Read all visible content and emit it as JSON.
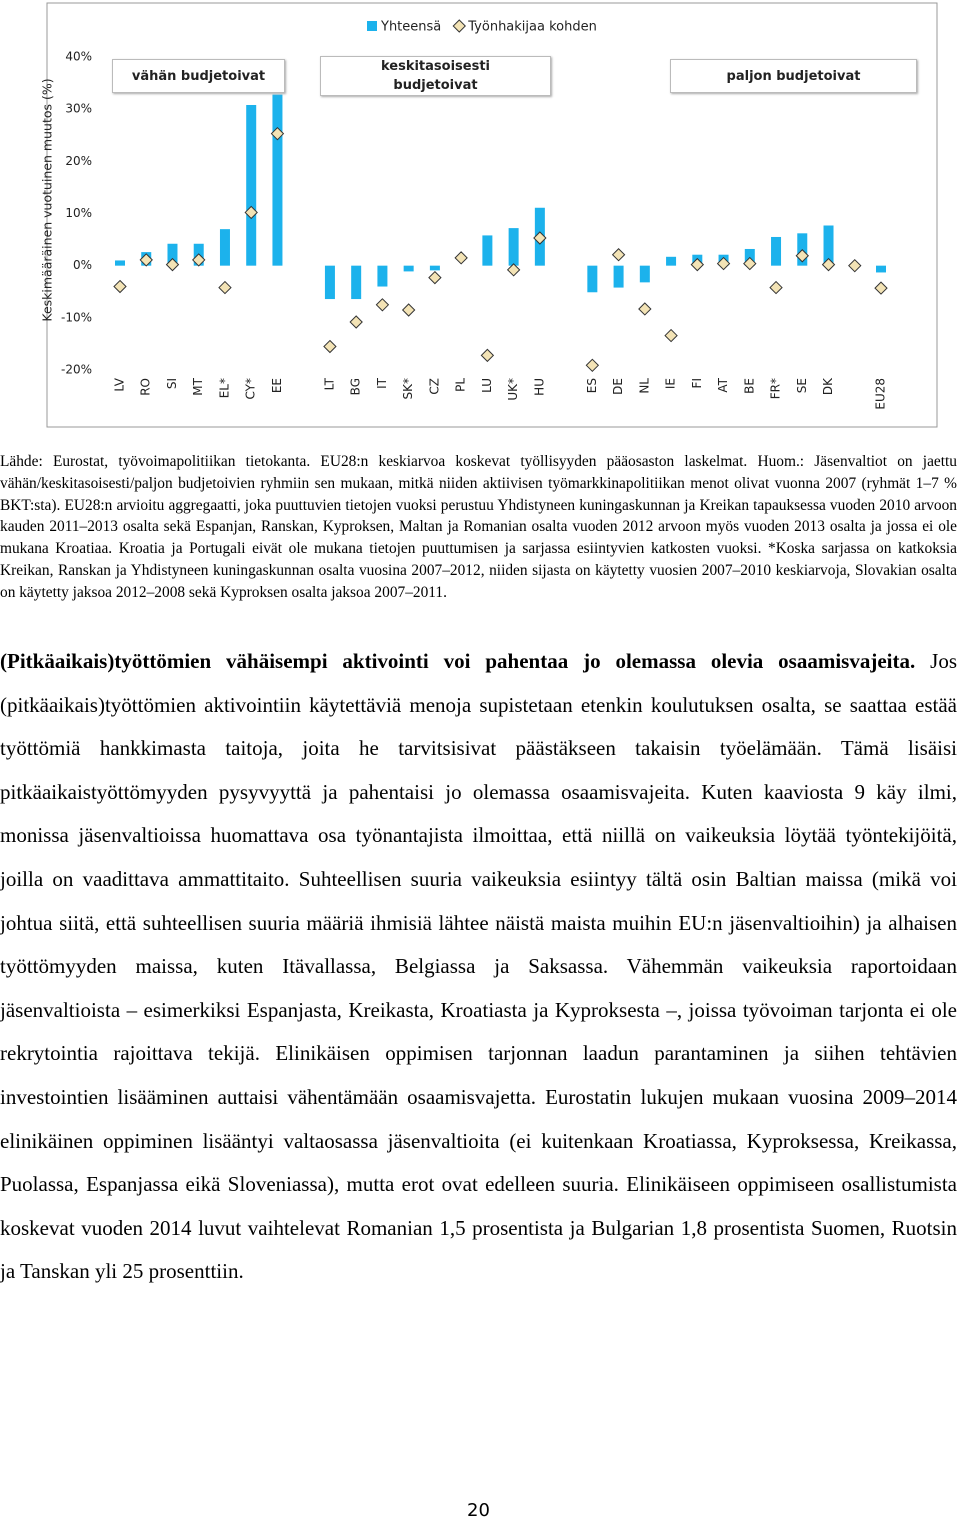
{
  "chart_data": {
    "type": "bar",
    "ylabel": "Keskimääräinen vuotuinen muutos (%)",
    "categories": [
      "LV",
      "RO",
      "SI",
      "MT",
      "EL*",
      "CY*",
      "EE",
      null,
      "LT",
      "BG",
      "IT",
      "SK*",
      "CZ",
      "PL",
      "LU",
      "UK*",
      "HU",
      null,
      "ES",
      "DE",
      "NL",
      "IE",
      "FI",
      "AT",
      "BE",
      "FR*",
      "SE",
      "DK",
      null,
      "EU28"
    ],
    "series": [
      {
        "name": "Yhteensä",
        "color": "#1cb2ec",
        "marker": "bar",
        "values": [
          1,
          2.6,
          4.2,
          4.2,
          7,
          30.8,
          32.8,
          null,
          -6.4,
          -6.4,
          -4,
          -1.1,
          -0.9,
          0,
          5.8,
          7.2,
          11.1,
          null,
          -5.1,
          -4.2,
          -3.2,
          1.7,
          2.1,
          2.1,
          3.2,
          5.5,
          6.2,
          7.7,
          null,
          -1.3
        ]
      },
      {
        "name": "Työnhakijaa kohden",
        "color": "#f3e3b5",
        "marker": "diamond",
        "values": [
          -4,
          1.1,
          0.2,
          1.1,
          -4.2,
          10.2,
          25.3,
          null,
          -15.5,
          -10.8,
          -7.5,
          -8.5,
          -2.3,
          1.5,
          -17.2,
          -0.8,
          5.3,
          null,
          -19.1,
          2.1,
          -8.3,
          -13.4,
          0.2,
          0.4,
          0.4,
          -4.2,
          1.9,
          0.2,
          0,
          -4.3
        ]
      }
    ],
    "groups": [
      "vähän budjetoivat",
      "keskitasoisesti budjetoivat",
      "paljon budjetoivat"
    ],
    "ylim": [
      -20,
      40
    ],
    "yticks": [
      {
        "value": -20,
        "label": "-20%"
      },
      {
        "value": -10,
        "label": "-10%"
      },
      {
        "value": 0,
        "label": "0%"
      },
      {
        "value": 10,
        "label": "10%"
      },
      {
        "value": 20,
        "label": "20%"
      },
      {
        "value": 30,
        "label": "30%"
      },
      {
        "value": 40,
        "label": "40%"
      }
    ],
    "grid": false,
    "legend": "top"
  },
  "document": {
    "source": "Lähde: Eurostat, työvoimapolitiikan tietokanta. EU28:n keskiarvoa koskevat työllisyyden pääosaston laskelmat. Huom.: Jäsenvaltiot on jaettu vähän/keskitasoisesti/paljon budjetoivien ryhmiin sen mukaan, mitkä niiden aktiivisen työmarkkinapolitiikan menot olivat vuonna 2007 (ryhmät 1–7 % BKT:sta). EU28:n arvioitu aggregaatti, joka puuttuvien tietojen vuoksi perustuu Yhdistyneen kuningaskunnan ja Kreikan tapauksessa vuoden 2010 arvoon kauden 2011–2013 osalta sekä Espanjan, Ranskan, Kyproksen, Maltan ja Romanian osalta vuoden 2012 arvoon myös vuoden 2013 osalta ja jossa ei ole mukana Kroatiaa. Kroatia ja Portugali eivät ole mukana tietojen puuttumisen ja sarjassa esiintyvien katkosten vuoksi. *Koska sarjassa on katkoksia Kreikan, Ranskan ja Yhdistyneen kuningaskunnan osalta vuosina 2007–2012, niiden sijasta on käytetty vuosien 2007–2010 keskiarvoja, Slovakian osalta on käytetty jaksoa 2012–2008 sekä Kyproksen osalta jaksoa 2007–2011.",
    "lead": "(Pitkäaikais)työttömien vähäisempi aktivointi voi pahentaa jo olemassa olevia osaamisvajeita.",
    "body": "Jos (pitkäaikais)työttömien aktivointiin käytettäviä menoja supistetaan etenkin koulutuksen osalta, se saattaa estää työttömiä hankkimasta taitoja, joita he tarvitsisivat päästäkseen takaisin työelämään. Tämä lisäisi pitkäaikaistyöttömyyden pysyvyyttä ja pahentaisi jo olemassa osaamisvajeita. Kuten kaaviosta 9 käy ilmi, monissa jäsenvaltioissa huomattava osa työnantajista ilmoittaa, että niillä on vaikeuksia löytää työntekijöitä, joilla on vaadittava ammattitaito. Suhteellisen suuria vaikeuksia esiintyy tältä osin Baltian maissa (mikä voi johtua siitä, että suhteellisen suuria määriä ihmisiä lähtee näistä maista muihin EU:n jäsenvaltioihin) ja alhaisen työttömyyden maissa, kuten Itävallassa, Belgiassa ja Saksassa. Vähemmän vaikeuksia raportoidaan jäsenvaltioista – esimerkiksi Espanjasta, Kreikasta, Kroatiasta ja Kyproksesta –, joissa työvoiman tarjonta ei ole rekrytointia rajoittava tekijä. Elinikäisen oppimisen tarjonnan laadun parantaminen ja siihen tehtävien investointien lisääminen auttaisi vähentämään osaamisvajetta. Eurostatin lukujen mukaan vuosina 2009–2014 elinikäinen oppiminen lisääntyi valtaosassa jäsenvaltioita (ei kuitenkaan Kroatiassa, Kyproksessa, Kreikassa, Puolassa, Espanjassa eikä Sloveniassa), mutta erot ovat edelleen suuria. Elinikäiseen oppimiseen osallistumista koskevat vuoden 2014 luvut vaihtelevat Romanian 1,5 prosentista ja Bulgarian 1,8 prosentista Suomen, Ruotsin ja Tanskan yli 25 prosenttiin.",
    "page_number": "20"
  }
}
